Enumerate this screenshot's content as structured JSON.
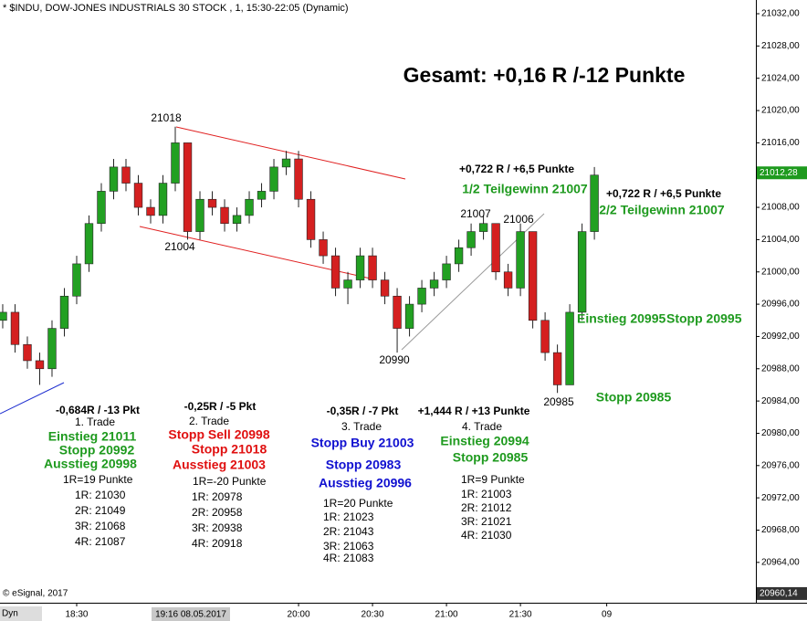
{
  "chart_data": {
    "type": "candlestick",
    "title": "* $INDU, DOW-JONES INDUSTRIALS 30 STOCK , 1, 15:30-22:05 (Dynamic)",
    "x": [
      1080,
      1085,
      1090,
      1095,
      1100,
      1105,
      1110,
      1115,
      1120,
      1125,
      1130,
      1135,
      1140,
      1145,
      1150,
      1155,
      1160,
      1165,
      1170,
      1175,
      1180,
      1185,
      1190,
      1195,
      1200,
      1205,
      1210,
      1215,
      1220,
      1225,
      1230,
      1235,
      1240,
      1245,
      1250,
      1255,
      1260,
      1265,
      1270,
      1275,
      1280,
      1285,
      1290,
      1295,
      1300,
      1305,
      1310,
      1315,
      1320
    ],
    "open": [
      20994,
      20995,
      20991,
      20989,
      20988,
      20993,
      20997,
      21001,
      21006,
      21010,
      21013,
      21011,
      21008,
      21007,
      21011,
      21016,
      21005,
      21009,
      21008,
      21006,
      21007,
      21009,
      21010,
      21013,
      21014,
      21009,
      21004,
      21002,
      20998,
      20999,
      21002,
      20999,
      20997,
      20993,
      20996,
      20998,
      20999,
      21001,
      21003,
      21005,
      21006,
      21000,
      20998,
      21005,
      20994,
      20990,
      20986,
      20995,
      21005
    ],
    "high": [
      20996,
      20996,
      20992,
      20990,
      20994,
      20998,
      21002,
      21007,
      21011,
      21014,
      21014,
      21012,
      21009,
      21012,
      21018,
      21016,
      21010,
      21010,
      21009,
      21008,
      21010,
      21011,
      21014,
      21015,
      21015,
      21010,
      21005,
      21003,
      21000,
      21003,
      21003,
      21000,
      20998,
      20997,
      20999,
      21000,
      21002,
      21004,
      21006,
      21007,
      21006,
      21001,
      21006,
      21005,
      20995,
      20991,
      20996,
      21006,
      21013
    ],
    "low": [
      20993,
      20990,
      20988,
      20986,
      20987,
      20992,
      20996,
      21000,
      21005,
      21009,
      21010,
      21007,
      21006,
      21006,
      21010,
      21004,
      21004,
      21007,
      21005,
      21005,
      21006,
      21008,
      21009,
      21012,
      21008,
      21003,
      21001,
      20997,
      20996,
      20998,
      20998,
      20996,
      20990,
      20992,
      20995,
      20997,
      20998,
      21000,
      21002,
      21004,
      20999,
      20997,
      20997,
      20993,
      20989,
      20985,
      20986,
      20994,
      21004
    ],
    "close": [
      20995,
      20991,
      20989,
      20988,
      20993,
      20997,
      21001,
      21006,
      21010,
      21013,
      21011,
      21008,
      21007,
      21011,
      21016,
      21005,
      21009,
      21008,
      21006,
      21007,
      21009,
      21010,
      21013,
      21014,
      21009,
      21004,
      21002,
      20998,
      20999,
      21002,
      20999,
      20997,
      20993,
      20996,
      20998,
      20999,
      21001,
      21003,
      21005,
      21006,
      21000,
      20998,
      21005,
      20994,
      20990,
      20986,
      20995,
      21005,
      21012
    ],
    "up_color": "#22a022",
    "down_color": "#d42020",
    "xlim": [
      1078.9,
      1385.5
    ],
    "xticks": [
      {
        "value": 1110,
        "label": "18:30"
      },
      {
        "value": 1200,
        "label": "20:00"
      },
      {
        "value": 1230,
        "label": "20:30"
      },
      {
        "value": 1260,
        "label": "21:00"
      },
      {
        "value": 1290,
        "label": "21:30"
      },
      {
        "value": 1325,
        "label": "09"
      }
    ],
    "ylim": [
      20959,
      21033.7
    ],
    "yticks": [
      {
        "value": 20964,
        "label": "20964,00"
      },
      {
        "value": 20968,
        "label": "20968,00"
      },
      {
        "value": 20972,
        "label": "20972,00"
      },
      {
        "value": 20976,
        "label": "20976,00"
      },
      {
        "value": 20980,
        "label": "20980,00"
      },
      {
        "value": 20984,
        "label": "20984,00"
      },
      {
        "value": 20988,
        "label": "20988,00"
      },
      {
        "value": 20992,
        "label": "20992,00"
      },
      {
        "value": 20996,
        "label": "20996,00"
      },
      {
        "value": 21000,
        "label": "21000,00"
      },
      {
        "value": 21004,
        "label": "21004,00"
      },
      {
        "value": 21008,
        "label": "21008,00"
      },
      {
        "value": 21012,
        "label": "21012,00"
      },
      {
        "value": 21016,
        "label": "21016,00"
      },
      {
        "value": 21020,
        "label": "21020,00"
      },
      {
        "value": 21024,
        "label": "21024,00"
      },
      {
        "value": 21028,
        "label": "21028,00"
      },
      {
        "value": 21032,
        "label": "21032,00"
      }
    ],
    "last_price": {
      "value": 21012.28,
      "label": "21012,28"
    },
    "low_price": {
      "value": 20960.14,
      "label": "20960,14"
    },
    "cursor_label": "19:16 08.05.2017",
    "copyright": "© eSignal, 2017",
    "mode": "Dyn",
    "annotations": [
      "Gesamt: +0,16 R /-12 Punkte",
      "21018",
      "21004",
      "21007",
      "21006",
      "20990",
      "20985",
      "+0,722 R / +6,5 Punkte",
      "1/2 Teilgewinn 21007",
      "+0,722 R / +6,5 Punkte",
      "2/2 Teilgewinn 21007",
      "Einstieg 20995",
      "Stopp 20995",
      "Stopp 20985",
      "-0,684R / -13 Pkt",
      "1. Trade",
      "Einstieg 21011",
      "Stopp 20992",
      "Ausstieg 20998",
      "1R=19 Punkte",
      "1R: 21030",
      "2R: 21049",
      "3R: 21068",
      "4R: 21087",
      "-0,25R / -5 Pkt",
      "2. Trade",
      "Stopp Sell 20998",
      "Stopp 21018",
      "Ausstieg 21003",
      "1R=-20 Punkte",
      "1R: 20978",
      "2R: 20958",
      "3R: 20938",
      "4R: 20918",
      "-0,35R / -7 Pkt",
      "3. Trade",
      "Stopp Buy 21003",
      "Stopp 20983",
      "Ausstieg 20996",
      "1R=20 Punkte",
      "1R: 21023",
      "2R: 21043",
      "3R: 21063",
      "4R: 21083",
      "+1,444 R / +13 Punkte",
      "4. Trade",
      "Einstieg 20994",
      "Stopp 20985",
      "1R=9 Punkte",
      "1R: 21003",
      "2R: 21012",
      "3R: 21021",
      "4R: 21030"
    ]
  }
}
